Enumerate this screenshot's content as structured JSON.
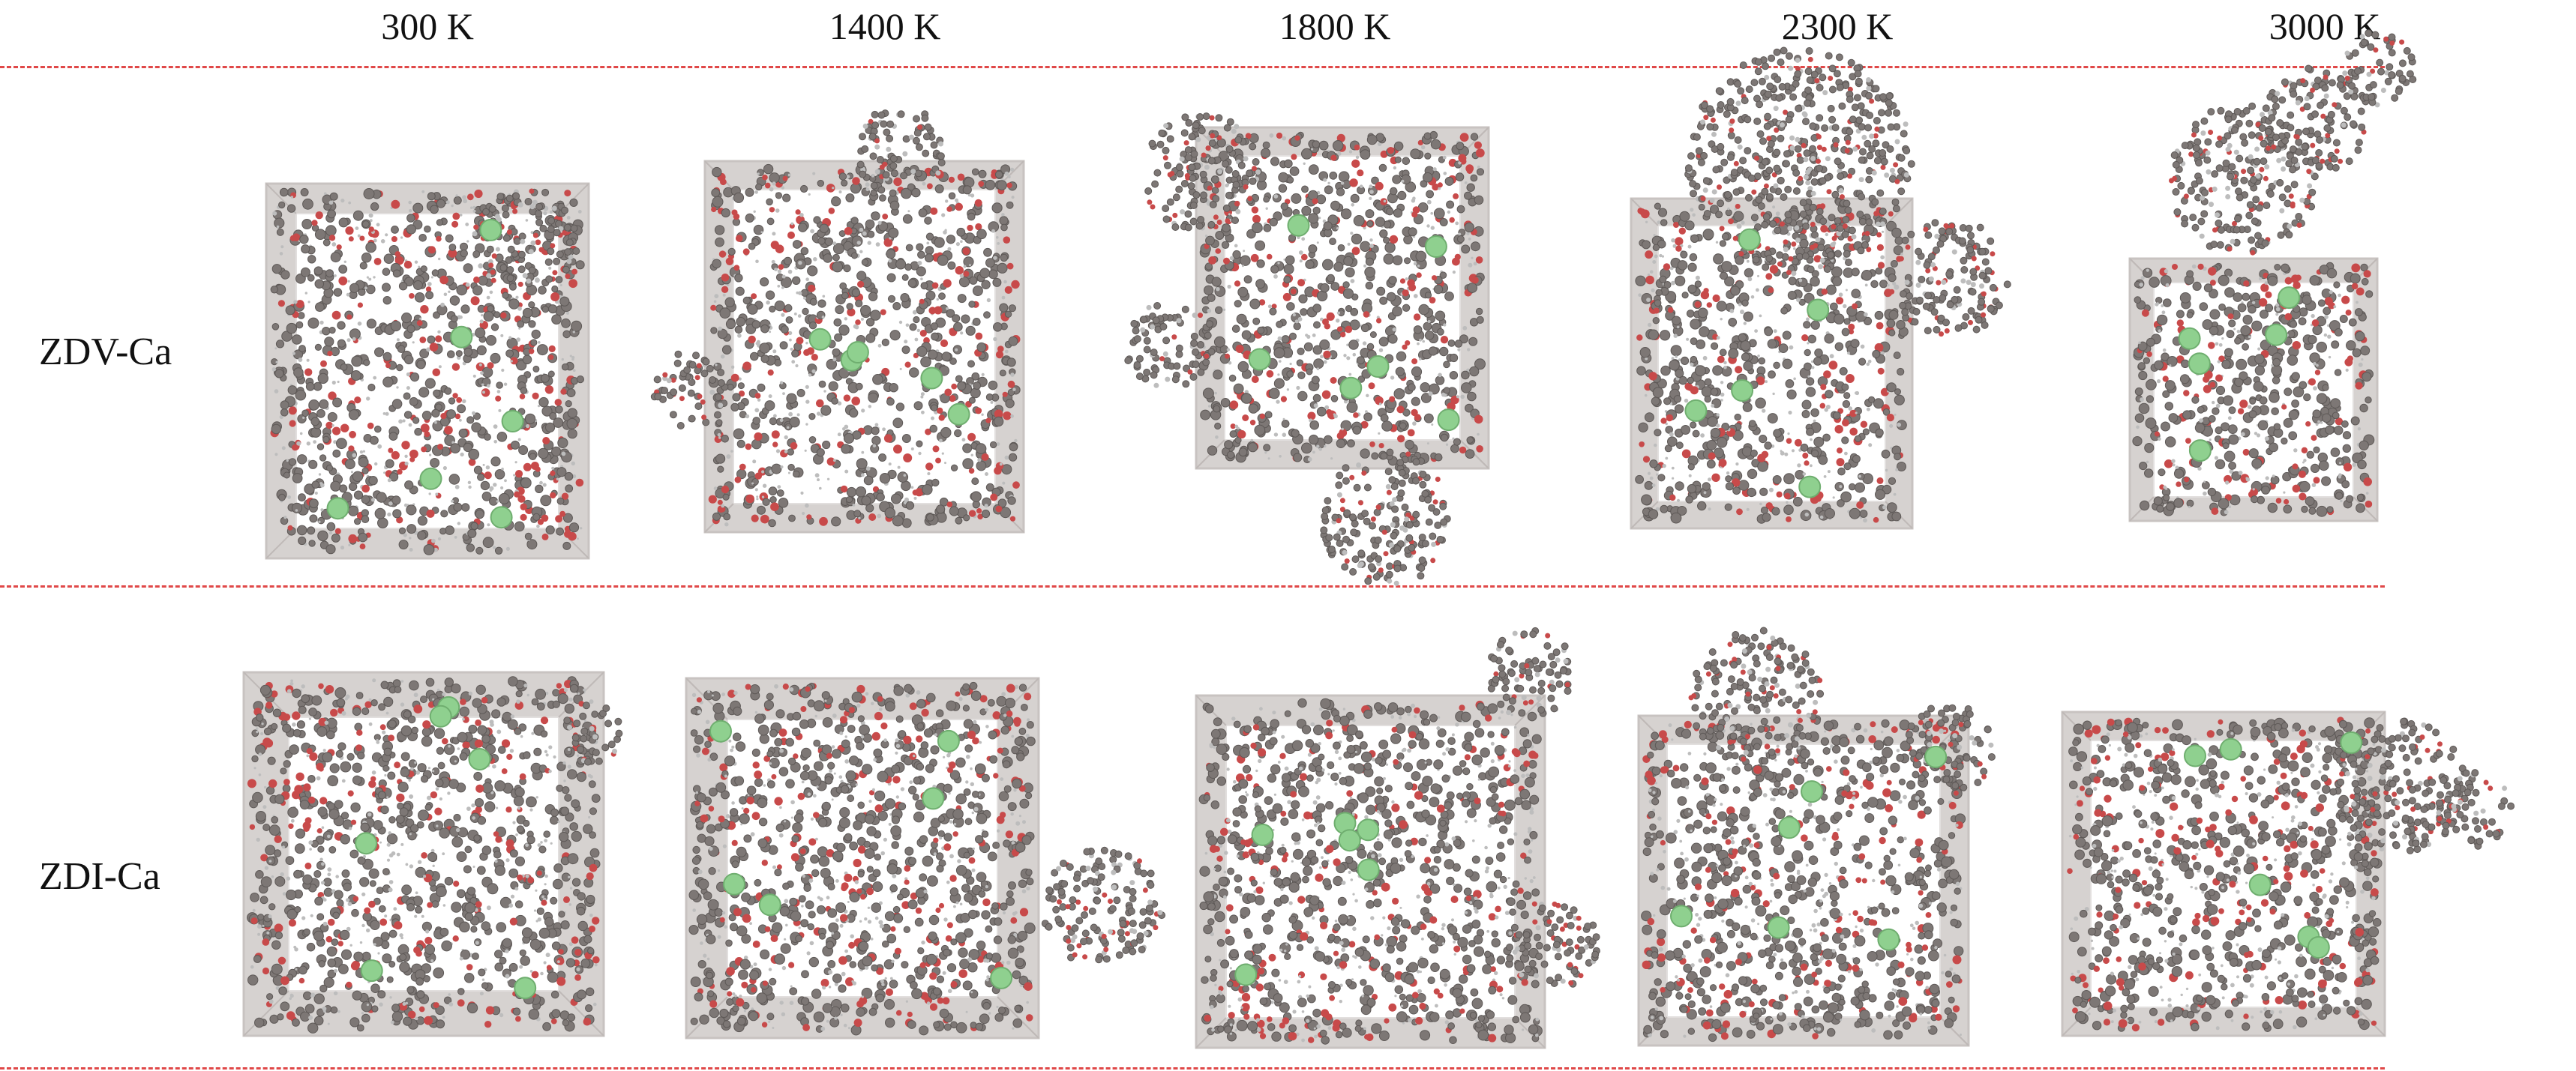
{
  "temperatures": [
    "300 K",
    "1400 K",
    "1800 K",
    "2300 K",
    "3000 K"
  ],
  "rows": [
    {
      "label": "ZDV-Ca"
    },
    {
      "label": "ZDI-Ca"
    }
  ],
  "colors": {
    "separator": "#e04848",
    "box_face": "#d6d2d0",
    "box_inner": "#ffffff",
    "carbon": "#7d7775",
    "oxygen": "#c84a4a",
    "hydrogen": "#bdbdbd",
    "calcium": "#8fd08f"
  }
}
